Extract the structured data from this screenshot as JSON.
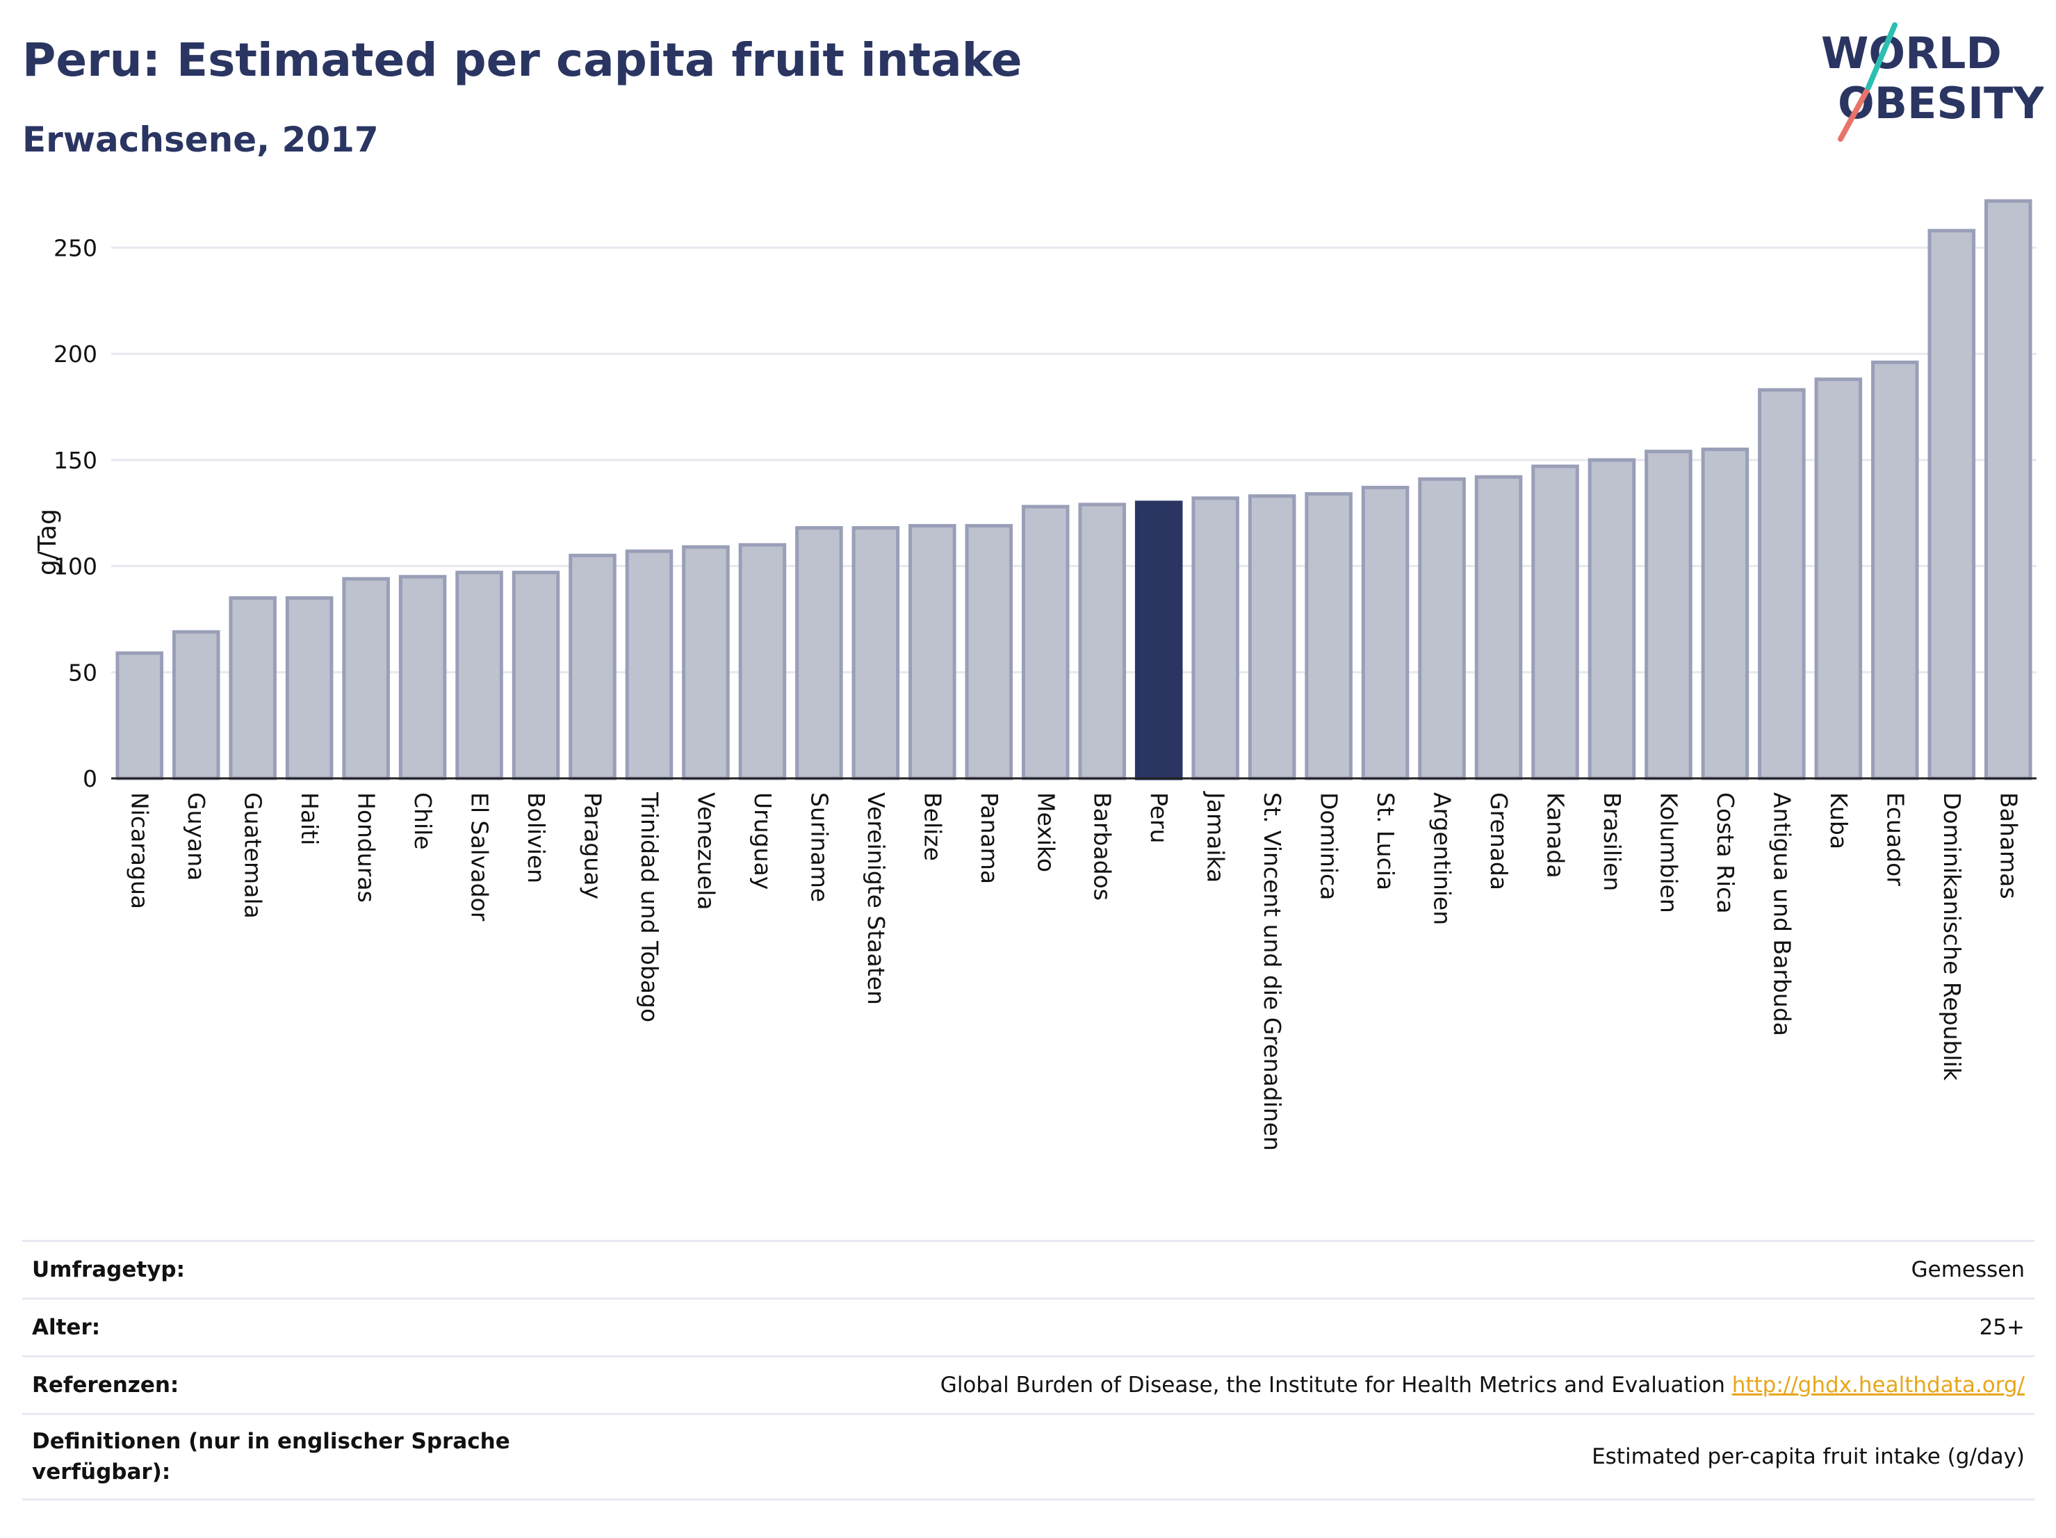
{
  "header": {
    "title": "Peru: Estimated per capita fruit intake",
    "subtitle": "Erwachsene, 2017"
  },
  "logo": {
    "line1": "WORLD",
    "line2": "OBESITY"
  },
  "colors": {
    "bar": "#bec1ce",
    "bar_border": "#9a9fb8",
    "highlight": "#2a3562",
    "grid": "#e6e8ee",
    "axis": "#222222"
  },
  "chart_data": {
    "type": "bar",
    "ylabel": "g/Tag",
    "ylim": [
      0,
      275
    ],
    "yticks": [
      0,
      50,
      100,
      150,
      200,
      250
    ],
    "grid": true,
    "highlight": "Peru",
    "categories": [
      "Nicaragua",
      "Guyana",
      "Guatemala",
      "Haiti",
      "Honduras",
      "Chile",
      "El Salvador",
      "Bolivien",
      "Paraguay",
      "Trinidad und Tobago",
      "Venezuela",
      "Uruguay",
      "Suriname",
      "Vereinigte Staaten",
      "Belize",
      "Panama",
      "Mexiko",
      "Barbados",
      "Peru",
      "Jamaika",
      "St. Vincent und die Grenadinen",
      "Dominica",
      "St. Lucia",
      "Argentinien",
      "Grenada",
      "Kanada",
      "Brasilien",
      "Kolumbien",
      "Costa Rica",
      "Antigua und Barbuda",
      "Kuba",
      "Ecuador",
      "Dominikanische Republik",
      "Bahamas"
    ],
    "values": [
      59,
      69,
      85,
      85,
      94,
      95,
      97,
      97,
      105,
      107,
      109,
      110,
      118,
      118,
      119,
      119,
      128,
      129,
      130,
      132,
      133,
      134,
      137,
      141,
      142,
      147,
      150,
      154,
      155,
      183,
      188,
      196,
      258,
      272
    ]
  },
  "meta": [
    {
      "label": "Umfragetyp:",
      "value": "Gemessen"
    },
    {
      "label": "Alter:",
      "value": "25+"
    },
    {
      "label": "Referenzen:",
      "value": "Global Burden of Disease, the Institute for Health Metrics and Evaluation",
      "link": "http://ghdx.healthdata.org/"
    },
    {
      "label": "Definitionen (nur in englischer Sprache verfügbar):",
      "value": "Estimated per-capita fruit intake (g/day)"
    }
  ]
}
